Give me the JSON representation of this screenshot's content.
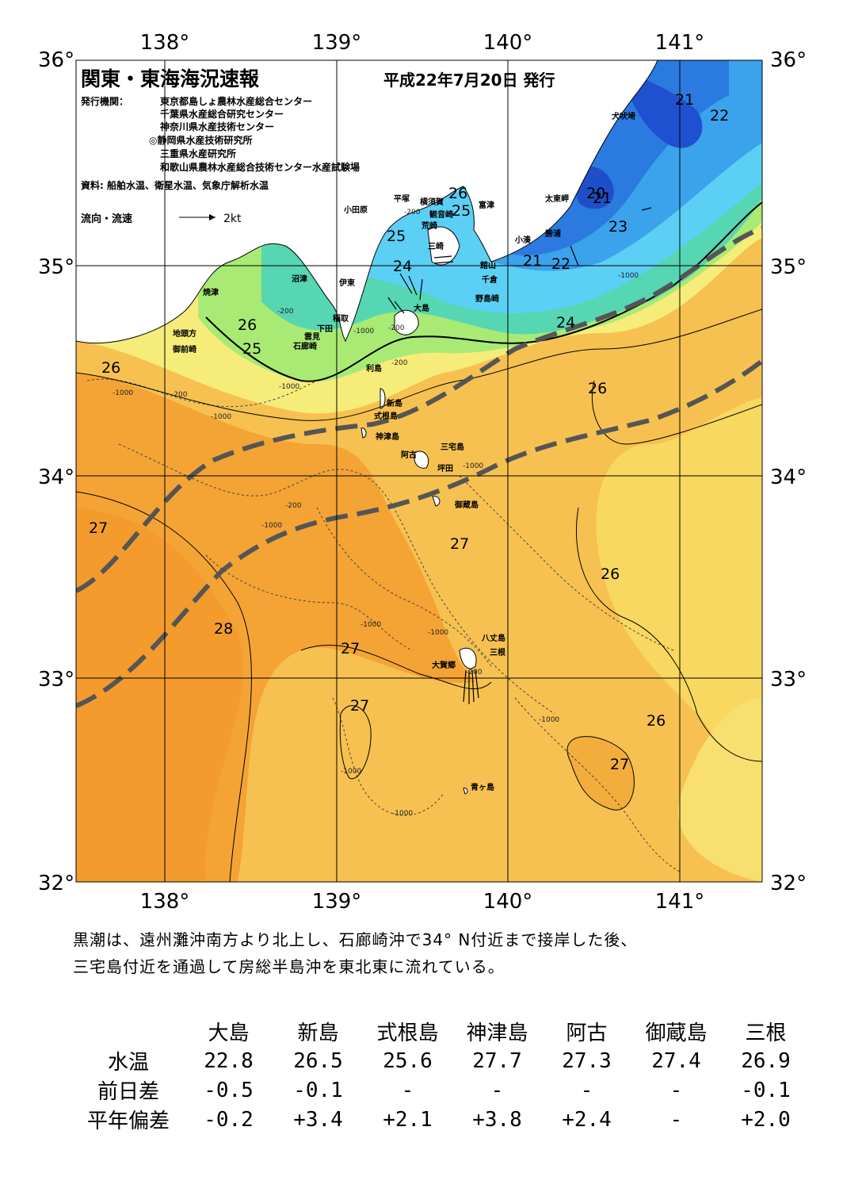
{
  "title": "関東・東海海況速報",
  "issue_date": "平成22年7月20日 発行",
  "issuers_label": "発行機関：",
  "issuers": [
    "東京都島しょ農林水産総合センター",
    "千葉県水産総合研究センター",
    "神奈川県水産技術センター",
    "◎静岡県水産技術研究所",
    "三重県水産研究所",
    "和歌山県農林水産総合技術センター水産試験場"
  ],
  "sources": "資料: 船舶水温、衛星水温、気象庁解析水温",
  "flow_legend": {
    "label": "流向・流速",
    "speed": "2kt"
  },
  "lon_labels": [
    "138°",
    "139°",
    "140°",
    "141°"
  ],
  "lat_labels": [
    "36°",
    "35°",
    "34°",
    "33°",
    "32°"
  ],
  "place_names": [
    "犬吠埼",
    "太東岬",
    "勝浦",
    "小湊",
    "館山",
    "千倉",
    "野島崎",
    "富津",
    "観音崎",
    "横須賀",
    "荒崎",
    "三崎",
    "平塚",
    "小田原",
    "沼津",
    "伊東",
    "大島",
    "稲取",
    "下田",
    "雲見",
    "石廊崎",
    "焼津",
    "地頭方",
    "御前崎",
    "利島",
    "新島",
    "式根島",
    "神津島",
    "三宅島",
    "阿古",
    "坪田",
    "御蔵島",
    "八丈島",
    "三根",
    "大賀郷",
    "青ヶ島"
  ],
  "isotherm_labels": [
    "21",
    "22",
    "20",
    "21",
    "23",
    "21",
    "22",
    "24",
    "24",
    "25",
    "26",
    "25",
    "26",
    "25",
    "26",
    "26",
    "27",
    "27",
    "28",
    "27",
    "27",
    "26",
    "26",
    "27"
  ],
  "depth_labels": [
    "-200",
    "-1000"
  ],
  "description": [
    "黒潮は、遠州灘沖南方より北上し、石廊崎沖で34° N付近まで接岸した後、",
    "三宅島付近を通過して房総半島沖を東北東に流れている。"
  ],
  "table": {
    "columns": [
      "大島",
      "新島",
      "式根島",
      "神津島",
      "阿古",
      "御蔵島",
      "三根"
    ],
    "rows": [
      {
        "label": "水温",
        "values": [
          "22.8",
          "26.5",
          "25.6",
          "27.7",
          "27.3",
          "27.4",
          "26.9"
        ]
      },
      {
        "label": "前日差",
        "values": [
          "-0.5",
          "-0.1",
          "-",
          "-",
          "-",
          "-",
          "-0.1"
        ]
      },
      {
        "label": "平年偏差",
        "values": [
          "-0.2",
          "+3.4",
          "+2.1",
          "+3.8",
          "+2.4",
          "-",
          "+2.0"
        ]
      }
    ]
  },
  "colors": {
    "sst_20": "#1e50d0",
    "sst_21": "#2a78e0",
    "sst_22": "#3ca0ec",
    "sst_23": "#5cd0f4",
    "sst_24": "#50d8b0",
    "sst_25": "#a8ec70",
    "sst_26": "#f6f07a",
    "sst_26b": "#f8d860",
    "sst_27": "#f6b440",
    "sst_28": "#f08c20",
    "land": "#ffffff",
    "kuroshio": "#555555"
  }
}
